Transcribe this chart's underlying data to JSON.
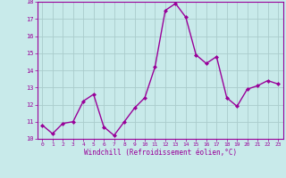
{
  "x": [
    0,
    1,
    2,
    3,
    4,
    5,
    6,
    7,
    8,
    9,
    10,
    11,
    12,
    13,
    14,
    15,
    16,
    17,
    18,
    19,
    20,
    21,
    22,
    23
  ],
  "y": [
    10.8,
    10.3,
    10.9,
    11.0,
    12.2,
    12.6,
    10.7,
    10.2,
    11.0,
    11.8,
    12.4,
    14.2,
    17.5,
    17.9,
    17.1,
    14.9,
    14.4,
    14.8,
    12.4,
    11.9,
    12.9,
    13.1,
    13.4,
    13.2
  ],
  "line_color": "#990099",
  "marker": "D",
  "marker_size": 2,
  "bg_color": "#c8eaea",
  "grid_color": "#aacccc",
  "xlabel": "Windchill (Refroidissement éolien,°C)",
  "xlabel_color": "#990099",
  "tick_color": "#990099",
  "ylim": [
    10,
    18
  ],
  "xlim": [
    -0.5,
    23.5
  ],
  "yticks": [
    10,
    11,
    12,
    13,
    14,
    15,
    16,
    17,
    18
  ],
  "xticks": [
    0,
    1,
    2,
    3,
    4,
    5,
    6,
    7,
    8,
    9,
    10,
    11,
    12,
    13,
    14,
    15,
    16,
    17,
    18,
    19,
    20,
    21,
    22,
    23
  ],
  "line_width": 1.0
}
